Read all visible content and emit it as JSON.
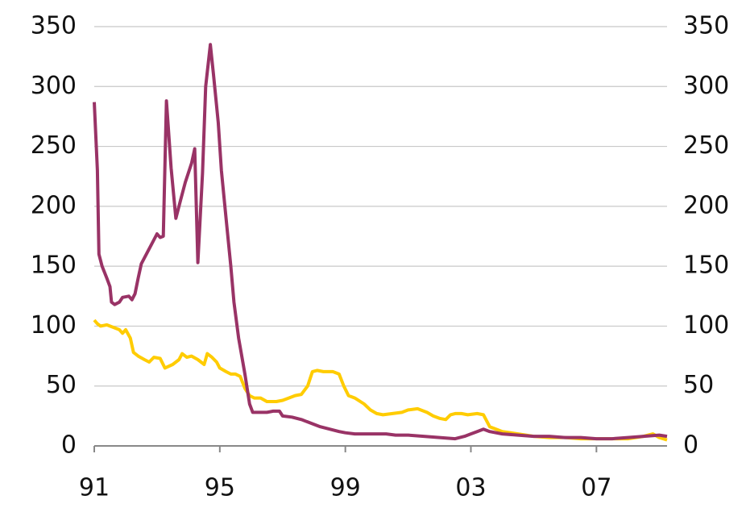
{
  "chart_data": {
    "type": "line",
    "xlim": [
      1991,
      2009.25
    ],
    "xticks": [
      {
        "value": 1991,
        "label": "91"
      },
      {
        "value": 1995,
        "label": "95"
      },
      {
        "value": 1999,
        "label": "99"
      },
      {
        "value": 2003,
        "label": "03"
      },
      {
        "value": 2007,
        "label": "07"
      }
    ],
    "ylim": [
      0,
      350
    ],
    "yticks": [
      0,
      50,
      100,
      150,
      200,
      250,
      300,
      350
    ],
    "y2lim": [
      0,
      350
    ],
    "y2ticks": [
      0,
      50,
      100,
      150,
      200,
      250,
      300,
      350
    ],
    "grid": true,
    "series": [
      {
        "color": "#993366",
        "x": [
          1991.0,
          1991.1,
          1991.15,
          1991.25,
          1991.4,
          1991.5,
          1991.55,
          1991.65,
          1991.8,
          1991.9,
          1992.1,
          1992.2,
          1992.3,
          1992.4,
          1992.5,
          1992.7,
          1992.9,
          1993.0,
          1993.1,
          1993.2,
          1993.3,
          1993.45,
          1993.6,
          1993.75,
          1993.9,
          1994.1,
          1994.2,
          1994.3,
          1994.45,
          1994.55,
          1994.7,
          1994.8,
          1994.95,
          1995.05,
          1995.2,
          1995.35,
          1995.45,
          1995.6,
          1995.8,
          1995.95,
          1996.05,
          1996.3,
          1996.5,
          1996.7,
          1996.9,
          1997.0,
          1997.3,
          1997.6,
          1997.8,
          1998.0,
          1998.2,
          1998.5,
          1998.8,
          1999.0,
          1999.3,
          1999.6,
          2000.0,
          2000.3,
          2000.6,
          2001.0,
          2001.5,
          2002.0,
          2002.5,
          2002.8,
          2003.0,
          2003.2,
          2003.4,
          2003.6,
          2004.0,
          2004.5,
          2005.0,
          2005.5,
          2006.0,
          2006.5,
          2007.0,
          2007.5,
          2008.0,
          2008.5,
          2009.0,
          2009.25
        ],
        "values": [
          287,
          230,
          160,
          150,
          140,
          133,
          120,
          118,
          120,
          124,
          125,
          122,
          127,
          140,
          152,
          162,
          172,
          177,
          174,
          175,
          288,
          232,
          190,
          205,
          220,
          236,
          248,
          153,
          228,
          300,
          335,
          310,
          270,
          230,
          190,
          150,
          120,
          90,
          60,
          35,
          28,
          28,
          28,
          29,
          29,
          25,
          24,
          22,
          20,
          18,
          16,
          14,
          12,
          11,
          10,
          10,
          10,
          10,
          9,
          9,
          8,
          7,
          6,
          8,
          10,
          12,
          14,
          12,
          10,
          9,
          8,
          8,
          7,
          7,
          6,
          6,
          7,
          8,
          9,
          8
        ]
      },
      {
        "color": "#ffcc00",
        "axis": "y2",
        "x": [
          1991.0,
          1991.1,
          1991.2,
          1991.4,
          1991.6,
          1991.8,
          1991.9,
          1992.0,
          1992.15,
          1992.25,
          1992.4,
          1992.6,
          1992.75,
          1992.9,
          1993.1,
          1993.25,
          1993.5,
          1993.7,
          1993.8,
          1993.95,
          1994.1,
          1994.3,
          1994.5,
          1994.6,
          1994.75,
          1994.9,
          1995.0,
          1995.2,
          1995.35,
          1995.5,
          1995.65,
          1995.8,
          1995.95,
          1996.1,
          1996.3,
          1996.5,
          1996.8,
          1997.0,
          1997.2,
          1997.4,
          1997.6,
          1997.8,
          1997.95,
          1998.1,
          1998.3,
          1998.6,
          1998.8,
          1998.95,
          1999.1,
          1999.3,
          1999.6,
          1999.8,
          2000.0,
          2000.2,
          2000.5,
          2000.8,
          2001.0,
          2001.3,
          2001.6,
          2001.8,
          2002.0,
          2002.2,
          2002.35,
          2002.5,
          2002.7,
          2002.9,
          2003.2,
          2003.4,
          2003.6,
          2003.8,
          2004.0,
          2004.5,
          2005.0,
          2005.5,
          2006.0,
          2006.5,
          2007.0,
          2007.5,
          2008.0,
          2008.5,
          2008.8,
          2009.0,
          2009.25
        ],
        "values": [
          105,
          102,
          100,
          101,
          99,
          97,
          94,
          97,
          90,
          78,
          75,
          72,
          70,
          74,
          73,
          65,
          68,
          72,
          77,
          74,
          75,
          72,
          68,
          77,
          74,
          70,
          65,
          62,
          60,
          60,
          58,
          48,
          42,
          40,
          40,
          37,
          37,
          38,
          40,
          42,
          43,
          50,
          62,
          63,
          62,
          62,
          60,
          50,
          42,
          40,
          35,
          30,
          27,
          26,
          27,
          28,
          30,
          31,
          28,
          25,
          23,
          22,
          26,
          27,
          27,
          26,
          27,
          26,
          16,
          14,
          12,
          10,
          8,
          7,
          7,
          6,
          6,
          6,
          6,
          8,
          10,
          7,
          5
        ]
      }
    ]
  }
}
